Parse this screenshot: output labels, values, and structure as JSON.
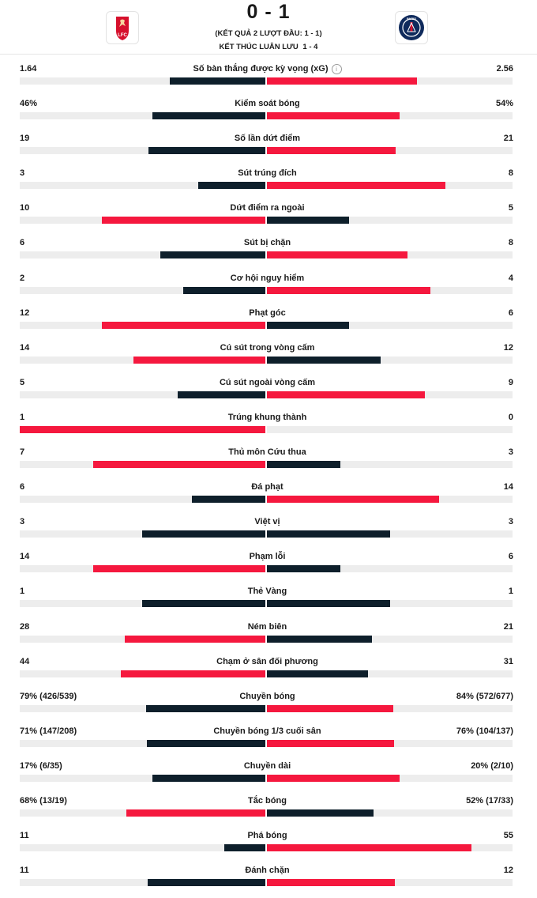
{
  "match": {
    "score": "0 - 1",
    "aggregate": "(KẾT QUẢ 2 LƯỢT ĐẦU: 1 - 1)",
    "penalties_label": "KẾT THÚC LUÂN LƯU",
    "penalties_score": "1 - 4",
    "home_crest_text": "LFC",
    "away_crest_text": "PARIS"
  },
  "colors": {
    "winner_bar": "#f5183e",
    "loser_bar": "#0e1f2b",
    "track": "#ededed"
  },
  "stats": [
    {
      "label": "Số bàn thắng được kỳ vọng (xG)",
      "home": "1.64",
      "away": "2.56",
      "home_share": 0.39,
      "away_share": 0.61,
      "info_icon": true
    },
    {
      "label": "Kiểm soát bóng",
      "home": "46%",
      "away": "54%",
      "home_share": 0.46,
      "away_share": 0.54
    },
    {
      "label": "Số lần dứt điểm",
      "home": "19",
      "away": "21",
      "home_share": 0.475,
      "away_share": 0.525
    },
    {
      "label": "Sút trúng đích",
      "home": "3",
      "away": "8",
      "home_share": 0.273,
      "away_share": 0.727
    },
    {
      "label": "Dứt điểm ra ngoài",
      "home": "10",
      "away": "5",
      "home_share": 0.667,
      "away_share": 0.333
    },
    {
      "label": "Sút bị chặn",
      "home": "6",
      "away": "8",
      "home_share": 0.429,
      "away_share": 0.571
    },
    {
      "label": "Cơ hội nguy hiểm",
      "home": "2",
      "away": "4",
      "home_share": 0.333,
      "away_share": 0.667
    },
    {
      "label": "Phạt góc",
      "home": "12",
      "away": "6",
      "home_share": 0.667,
      "away_share": 0.333
    },
    {
      "label": "Cú sút trong vòng cấm",
      "home": "14",
      "away": "12",
      "home_share": 0.538,
      "away_share": 0.462
    },
    {
      "label": "Cú sút ngoài vòng cấm",
      "home": "5",
      "away": "9",
      "home_share": 0.357,
      "away_share": 0.643
    },
    {
      "label": "Trúng khung thành",
      "home": "1",
      "away": "0",
      "home_share": 1.0,
      "away_share": 0.0
    },
    {
      "label": "Thủ môn Cứu thua",
      "home": "7",
      "away": "3",
      "home_share": 0.7,
      "away_share": 0.3
    },
    {
      "label": "Đá phạt",
      "home": "6",
      "away": "14",
      "home_share": 0.3,
      "away_share": 0.7
    },
    {
      "label": "Việt vị",
      "home": "3",
      "away": "3",
      "home_share": 0.5,
      "away_share": 0.5
    },
    {
      "label": "Phạm lỗi",
      "home": "14",
      "away": "6",
      "home_share": 0.7,
      "away_share": 0.3
    },
    {
      "label": "Thẻ Vàng",
      "home": "1",
      "away": "1",
      "home_share": 0.5,
      "away_share": 0.5
    },
    {
      "label": "Ném biên",
      "home": "28",
      "away": "21",
      "home_share": 0.571,
      "away_share": 0.429
    },
    {
      "label": "Chạm ở sân đối phương",
      "home": "44",
      "away": "31",
      "home_share": 0.587,
      "away_share": 0.413
    },
    {
      "label": "Chuyền bóng",
      "home": "79% (426/539)",
      "away": "84% (572/677)",
      "home_share": 0.485,
      "away_share": 0.515
    },
    {
      "label": "Chuyền bóng 1/3 cuối sân",
      "home": "71% (147/208)",
      "away": "76% (104/137)",
      "home_share": 0.483,
      "away_share": 0.517
    },
    {
      "label": "Chuyền dài",
      "home": "17% (6/35)",
      "away": "20% (2/10)",
      "home_share": 0.46,
      "away_share": 0.54
    },
    {
      "label": "Tắc bóng",
      "home": "68% (13/19)",
      "away": "52% (17/33)",
      "home_share": 0.567,
      "away_share": 0.433
    },
    {
      "label": "Phá bóng",
      "home": "11",
      "away": "55",
      "home_share": 0.167,
      "away_share": 0.833
    },
    {
      "label": "Đánh chặn",
      "home": "11",
      "away": "12",
      "home_share": 0.478,
      "away_share": 0.522
    }
  ]
}
